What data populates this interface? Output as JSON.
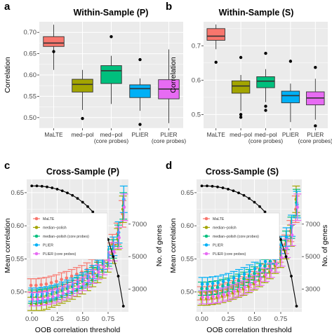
{
  "chart_data": [
    {
      "panel_label": "a",
      "type": "box",
      "title": "Within-Sample (P)",
      "xlabel": "",
      "ylabel": "Correlation",
      "ylim": [
        0.475,
        0.725
      ],
      "yticks": [
        0.5,
        0.55,
        0.6,
        0.65,
        0.7
      ],
      "ytick_labels": [
        "0.50",
        "0.55",
        "0.60",
        "0.65",
        "0.70"
      ],
      "categories": [
        "MaLTE",
        "med−pol",
        "med−pol\n(core probes)",
        "PLIER",
        "PLIER\n(core probes)"
      ],
      "colors": [
        "#F8766D",
        "#A3A500",
        "#00BF7D",
        "#00B0F6",
        "#E76BF3"
      ],
      "boxes": [
        {
          "q1": 0.667,
          "median": 0.675,
          "q3": 0.69,
          "whisker_low": 0.612,
          "whisker_high": 0.718,
          "outliers": [
            0.655
          ]
        },
        {
          "q1": 0.56,
          "median": 0.578,
          "q3": 0.59,
          "whisker_low": 0.518,
          "whisker_high": 0.612,
          "outliers": [
            0.498
          ]
        },
        {
          "q1": 0.58,
          "median": 0.61,
          "q3": 0.622,
          "whisker_low": 0.532,
          "whisker_high": 0.645,
          "outliers": [
            0.69
          ]
        },
        {
          "q1": 0.547,
          "median": 0.568,
          "q3": 0.577,
          "whisker_low": 0.516,
          "whisker_high": 0.592,
          "outliers": [
            0.636,
            0.484
          ]
        },
        {
          "q1": 0.544,
          "median": 0.567,
          "q3": 0.589,
          "whisker_low": 0.487,
          "whisker_high": 0.66,
          "outliers": []
        }
      ]
    },
    {
      "panel_label": "b",
      "type": "box",
      "title": "Within-Sample (S)",
      "xlabel": "",
      "ylabel": "Correlation",
      "ylim": [
        0.46,
        0.77
      ],
      "yticks": [
        0.5,
        0.6,
        0.7
      ],
      "ytick_labels": [
        "0.5",
        "0.6",
        "0.7"
      ],
      "categories": [
        "MaLTE",
        "med−pol",
        "med−pol\n(core probes)",
        "PLIER",
        "PLIER\n(core probes)"
      ],
      "colors": [
        "#F8766D",
        "#A3A500",
        "#00BF7D",
        "#00B0F6",
        "#E76BF3"
      ],
      "boxes": [
        {
          "q1": 0.716,
          "median": 0.728,
          "q3": 0.75,
          "whisker_low": 0.69,
          "whisker_high": 0.762,
          "outliers": [
            0.652
          ]
        },
        {
          "q1": 0.562,
          "median": 0.583,
          "q3": 0.598,
          "whisker_low": 0.51,
          "whisker_high": 0.615,
          "outliers": [
            0.666,
            0.5,
            0.492
          ]
        },
        {
          "q1": 0.578,
          "median": 0.597,
          "q3": 0.61,
          "whisker_low": 0.536,
          "whisker_high": 0.632,
          "outliers": [
            0.678,
            0.524,
            0.512
          ]
        },
        {
          "q1": 0.534,
          "median": 0.555,
          "q3": 0.568,
          "whisker_low": 0.478,
          "whisker_high": 0.59,
          "outliers": [
            0.655
          ]
        },
        {
          "q1": 0.528,
          "median": 0.548,
          "q3": 0.566,
          "whisker_low": 0.485,
          "whisker_high": 0.604,
          "outliers": [
            0.637,
            0.467
          ]
        }
      ]
    },
    {
      "panel_label": "c",
      "type": "line",
      "title": "Cross-Sample (P)",
      "xlabel": "OOB correlation threshold",
      "ylabel": "Mean correlation",
      "ylabel_right": "No. of genes",
      "xlim": [
        -0.05,
        0.95
      ],
      "xticks": [
        0,
        0.25,
        0.5,
        0.75
      ],
      "xtick_labels": [
        "0.00",
        "0.25",
        "0.50",
        "0.75"
      ],
      "ylim": [
        0.47,
        0.67
      ],
      "yticks": [
        0.5,
        0.55,
        0.6,
        0.65
      ],
      "ytick_labels": [
        "0.50",
        "0.55",
        "0.60",
        "0.65"
      ],
      "y2lim": [
        1600,
        9750
      ],
      "y2ticks": [
        3000,
        5000,
        7000
      ],
      "y2tick_labels": [
        "3000",
        "5000",
        "7000"
      ],
      "x": [
        0,
        0.05,
        0.1,
        0.15,
        0.2,
        0.25,
        0.3,
        0.35,
        0.4,
        0.45,
        0.5,
        0.55,
        0.6,
        0.65,
        0.7,
        0.75,
        0.8,
        0.85,
        0.9
      ],
      "legend": [
        "MaLTE",
        "median−polish",
        "median−polish (core probes)",
        "PLIER",
        "PLIER (core probes)"
      ],
      "legend_position": "left",
      "series": [
        {
          "name": "MaLTE",
          "color": "#F8766D",
          "values": [
            0.51,
            0.51,
            0.511,
            0.512,
            0.514,
            0.516,
            0.519,
            0.521,
            0.524,
            0.527,
            0.53,
            0.534,
            0.539,
            0.545,
            0.552,
            0.561,
            0.573,
            0.588,
            0.618
          ],
          "err": [
            0.01,
            0.01,
            0.01,
            0.01,
            0.01,
            0.01,
            0.01,
            0.01,
            0.01,
            0.01,
            0.01,
            0.01,
            0.01,
            0.011,
            0.012,
            0.013,
            0.014,
            0.016,
            0.02
          ]
        },
        {
          "name": "median−polish",
          "color": "#A3A500",
          "values": [
            0.482,
            0.482,
            0.482,
            0.484,
            0.487,
            0.49,
            0.493,
            0.496,
            0.499,
            0.503,
            0.507,
            0.512,
            0.518,
            0.525,
            0.533,
            0.543,
            0.557,
            0.58,
            0.625
          ],
          "err": [
            0.01,
            0.01,
            0.01,
            0.01,
            0.01,
            0.01,
            0.01,
            0.01,
            0.01,
            0.01,
            0.01,
            0.01,
            0.01,
            0.011,
            0.012,
            0.013,
            0.014,
            0.016,
            0.02
          ]
        },
        {
          "name": "median−polish (core probes)",
          "color": "#00BF7D",
          "values": [
            0.493,
            0.493,
            0.494,
            0.495,
            0.497,
            0.499,
            0.502,
            0.505,
            0.508,
            0.512,
            0.516,
            0.521,
            0.527,
            0.534,
            0.542,
            0.552,
            0.565,
            0.585,
            0.63
          ],
          "err": [
            0.01,
            0.01,
            0.01,
            0.01,
            0.01,
            0.01,
            0.01,
            0.01,
            0.01,
            0.01,
            0.01,
            0.01,
            0.01,
            0.011,
            0.012,
            0.013,
            0.014,
            0.016,
            0.02
          ]
        },
        {
          "name": "PLIER",
          "color": "#00B0F6",
          "values": [
            0.496,
            0.496,
            0.497,
            0.498,
            0.5,
            0.502,
            0.505,
            0.508,
            0.511,
            0.515,
            0.519,
            0.524,
            0.53,
            0.537,
            0.546,
            0.556,
            0.569,
            0.59,
            0.64
          ],
          "err": [
            0.01,
            0.01,
            0.01,
            0.01,
            0.01,
            0.01,
            0.01,
            0.01,
            0.01,
            0.01,
            0.01,
            0.01,
            0.01,
            0.011,
            0.012,
            0.013,
            0.014,
            0.016,
            0.02
          ]
        },
        {
          "name": "PLIER (core probes)",
          "color": "#E76BF3",
          "values": [
            0.489,
            0.489,
            0.49,
            0.491,
            0.493,
            0.495,
            0.498,
            0.501,
            0.504,
            0.508,
            0.512,
            0.517,
            0.523,
            0.53,
            0.538,
            0.548,
            0.561,
            0.582,
            0.628
          ],
          "err": [
            0.01,
            0.01,
            0.01,
            0.01,
            0.01,
            0.01,
            0.01,
            0.01,
            0.01,
            0.01,
            0.01,
            0.01,
            0.01,
            0.011,
            0.012,
            0.013,
            0.014,
            0.016,
            0.02
          ]
        }
      ],
      "genes": {
        "x": [
          0,
          0.05,
          0.1,
          0.15,
          0.2,
          0.25,
          0.3,
          0.35,
          0.4,
          0.45,
          0.5,
          0.55,
          0.6,
          0.65,
          0.7,
          0.75,
          0.8,
          0.85,
          0.9
        ],
        "values": [
          9350,
          9350,
          9330,
          9290,
          9230,
          9150,
          9050,
          8920,
          8770,
          8580,
          8350,
          8080,
          7750,
          7330,
          6800,
          6050,
          5000,
          3800,
          1950
        ]
      }
    },
    {
      "panel_label": "d",
      "type": "line",
      "title": "Cross-Sample (S)",
      "xlabel": "OOB correlation threshold",
      "ylabel": "Mean correlation",
      "ylabel_right": "No. of genes",
      "xlim": [
        -0.05,
        0.95
      ],
      "xticks": [
        0,
        0.25,
        0.5,
        0.75
      ],
      "xtick_labels": [
        "0.00",
        "0.25",
        "0.50",
        "0.75"
      ],
      "ylim": [
        0.47,
        0.67
      ],
      "yticks": [
        0.5,
        0.55,
        0.6,
        0.65
      ],
      "ytick_labels": [
        "0.50",
        "0.55",
        "0.60",
        "0.65"
      ],
      "y2lim": [
        1600,
        9750
      ],
      "y2ticks": [
        3000,
        5000,
        7000
      ],
      "y2tick_labels": [
        "3000",
        "5000",
        "7000"
      ],
      "x": [
        0,
        0.05,
        0.1,
        0.15,
        0.2,
        0.25,
        0.3,
        0.35,
        0.4,
        0.45,
        0.5,
        0.55,
        0.6,
        0.65,
        0.7,
        0.75,
        0.8,
        0.85,
        0.9
      ],
      "legend": [
        "MaLTE",
        "median−polish",
        "median−polish (core probes)",
        "PLIER",
        "PLIER (core probes)"
      ],
      "legend_position": "left",
      "series": [
        {
          "name": "MaLTE",
          "color": "#F8766D",
          "values": [
            0.498,
            0.498,
            0.499,
            0.5,
            0.502,
            0.504,
            0.507,
            0.51,
            0.513,
            0.517,
            0.521,
            0.526,
            0.532,
            0.539,
            0.548,
            0.558,
            0.572,
            0.592,
            0.625
          ],
          "err": [
            0.01,
            0.01,
            0.01,
            0.01,
            0.01,
            0.01,
            0.01,
            0.01,
            0.01,
            0.01,
            0.01,
            0.01,
            0.01,
            0.011,
            0.012,
            0.013,
            0.014,
            0.016,
            0.02
          ]
        },
        {
          "name": "median−polish",
          "color": "#A3A500",
          "values": [
            0.49,
            0.49,
            0.491,
            0.492,
            0.494,
            0.496,
            0.499,
            0.502,
            0.505,
            0.509,
            0.513,
            0.518,
            0.524,
            0.531,
            0.54,
            0.55,
            0.564,
            0.585,
            0.64
          ],
          "err": [
            0.01,
            0.01,
            0.01,
            0.01,
            0.01,
            0.01,
            0.01,
            0.01,
            0.01,
            0.01,
            0.01,
            0.01,
            0.01,
            0.011,
            0.012,
            0.013,
            0.014,
            0.016,
            0.02
          ]
        },
        {
          "name": "median−polish (core probes)",
          "color": "#00BF7D",
          "values": [
            0.505,
            0.505,
            0.506,
            0.507,
            0.509,
            0.511,
            0.514,
            0.517,
            0.52,
            0.524,
            0.528,
            0.533,
            0.539,
            0.546,
            0.555,
            0.565,
            0.578,
            0.597,
            0.635
          ],
          "err": [
            0.01,
            0.01,
            0.01,
            0.01,
            0.01,
            0.01,
            0.01,
            0.01,
            0.01,
            0.01,
            0.01,
            0.01,
            0.01,
            0.011,
            0.012,
            0.013,
            0.014,
            0.016,
            0.02
          ]
        },
        {
          "name": "PLIER",
          "color": "#00B0F6",
          "values": [
            0.512,
            0.512,
            0.513,
            0.514,
            0.516,
            0.518,
            0.521,
            0.524,
            0.527,
            0.531,
            0.535,
            0.54,
            0.546,
            0.553,
            0.561,
            0.571,
            0.583,
            0.6,
            0.632
          ],
          "err": [
            0.01,
            0.01,
            0.01,
            0.01,
            0.01,
            0.01,
            0.01,
            0.01,
            0.01,
            0.01,
            0.01,
            0.01,
            0.01,
            0.011,
            0.012,
            0.013,
            0.014,
            0.016,
            0.02
          ]
        },
        {
          "name": "PLIER (core probes)",
          "color": "#E76BF3",
          "values": [
            0.492,
            0.492,
            0.493,
            0.494,
            0.496,
            0.498,
            0.501,
            0.504,
            0.507,
            0.511,
            0.515,
            0.52,
            0.526,
            0.533,
            0.542,
            0.552,
            0.566,
            0.586,
            0.628
          ],
          "err": [
            0.01,
            0.01,
            0.01,
            0.01,
            0.01,
            0.01,
            0.01,
            0.01,
            0.01,
            0.01,
            0.01,
            0.01,
            0.01,
            0.011,
            0.012,
            0.013,
            0.014,
            0.016,
            0.02
          ]
        }
      ],
      "genes": {
        "x": [
          0,
          0.05,
          0.1,
          0.15,
          0.2,
          0.25,
          0.3,
          0.35,
          0.4,
          0.45,
          0.5,
          0.55,
          0.6,
          0.65,
          0.7,
          0.75,
          0.8,
          0.85,
          0.9
        ],
        "values": [
          9350,
          9350,
          9330,
          9290,
          9230,
          9150,
          9050,
          8920,
          8770,
          8580,
          8350,
          8080,
          7750,
          7330,
          6800,
          6050,
          5000,
          3800,
          1950
        ]
      }
    }
  ]
}
